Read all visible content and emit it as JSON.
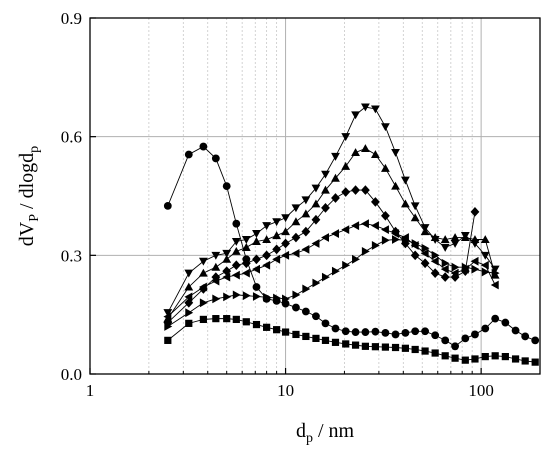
{
  "chart_data": {
    "type": "line",
    "xscale": "log",
    "xlim": [
      1,
      200
    ],
    "ylim": [
      0,
      0.9
    ],
    "xticks": [
      {
        "value": 1,
        "label": "1"
      },
      {
        "value": 10,
        "label": "10"
      },
      {
        "value": 100,
        "label": "100"
      }
    ],
    "yticks": [
      {
        "value": 0,
        "label": "0.0"
      },
      {
        "value": 0.3,
        "label": "0.3"
      },
      {
        "value": 0.6,
        "label": "0.6"
      },
      {
        "value": 0.9,
        "label": "0.9"
      }
    ],
    "xlabel": {
      "main": "d",
      "sub": "p",
      "rest": " / nm"
    },
    "ylabel": {
      "a": "dV",
      "a_sub": "P",
      "b": " / dlogd",
      "b_sub": "p"
    },
    "major_grid": {
      "x": [
        10,
        100
      ],
      "y": [
        0.3,
        0.6
      ]
    },
    "minor_grid_x": [
      2,
      3,
      4,
      5,
      6,
      7,
      8,
      9,
      20,
      30,
      40,
      50,
      60,
      70,
      80,
      90
    ],
    "colors": {
      "line": "#000000",
      "grid_major": "#b0b0b0",
      "grid_minor": "#c8c8c8"
    },
    "series": [
      {
        "marker": "circle",
        "points": [
          [
            2.5,
            0.425
          ],
          [
            3.2,
            0.555
          ],
          [
            3.8,
            0.575
          ],
          [
            4.4,
            0.545
          ],
          [
            5.0,
            0.475
          ],
          [
            5.6,
            0.38
          ],
          [
            6.3,
            0.29
          ],
          [
            7.1,
            0.22
          ],
          [
            8.0,
            0.19
          ],
          [
            9.0,
            0.185
          ],
          [
            10.0,
            0.178
          ],
          [
            11.3,
            0.168
          ],
          [
            12.7,
            0.158
          ],
          [
            14.3,
            0.146
          ],
          [
            16.0,
            0.128
          ],
          [
            18.0,
            0.115
          ],
          [
            20.3,
            0.108
          ],
          [
            22.8,
            0.106
          ],
          [
            25.6,
            0.106
          ],
          [
            28.8,
            0.107
          ],
          [
            32.4,
            0.104
          ],
          [
            36.5,
            0.1
          ],
          [
            41.0,
            0.104
          ],
          [
            46.0,
            0.108
          ],
          [
            51.7,
            0.108
          ],
          [
            58.2,
            0.098
          ],
          [
            65.5,
            0.085
          ],
          [
            73.6,
            0.07
          ],
          [
            83.0,
            0.09
          ],
          [
            93.0,
            0.1
          ],
          [
            105.0,
            0.115
          ],
          [
            118.0,
            0.14
          ],
          [
            133.0,
            0.13
          ],
          [
            150.0,
            0.11
          ],
          [
            168.0,
            0.095
          ],
          [
            189.0,
            0.085
          ]
        ]
      },
      {
        "marker": "square",
        "points": [
          [
            2.5,
            0.085
          ],
          [
            3.2,
            0.128
          ],
          [
            3.8,
            0.138
          ],
          [
            4.4,
            0.14
          ],
          [
            5.0,
            0.14
          ],
          [
            5.6,
            0.138
          ],
          [
            6.3,
            0.132
          ],
          [
            7.1,
            0.125
          ],
          [
            8.0,
            0.118
          ],
          [
            9.0,
            0.112
          ],
          [
            10.0,
            0.106
          ],
          [
            11.3,
            0.1
          ],
          [
            12.7,
            0.095
          ],
          [
            14.3,
            0.09
          ],
          [
            16.0,
            0.085
          ],
          [
            18.0,
            0.08
          ],
          [
            20.3,
            0.076
          ],
          [
            22.8,
            0.073
          ],
          [
            25.6,
            0.07
          ],
          [
            28.8,
            0.069
          ],
          [
            32.4,
            0.068
          ],
          [
            36.5,
            0.067
          ],
          [
            41.0,
            0.065
          ],
          [
            46.0,
            0.062
          ],
          [
            51.7,
            0.058
          ],
          [
            58.2,
            0.053
          ],
          [
            65.5,
            0.046
          ],
          [
            73.6,
            0.04
          ],
          [
            83.0,
            0.035
          ],
          [
            93.0,
            0.038
          ],
          [
            105.0,
            0.044
          ],
          [
            118.0,
            0.046
          ],
          [
            133.0,
            0.044
          ],
          [
            150.0,
            0.038
          ],
          [
            168.0,
            0.033
          ],
          [
            189.0,
            0.03
          ]
        ]
      },
      {
        "marker": "triangle-down",
        "points": [
          [
            2.5,
            0.155
          ],
          [
            3.2,
            0.255
          ],
          [
            3.8,
            0.285
          ],
          [
            4.4,
            0.3
          ],
          [
            5.0,
            0.305
          ],
          [
            5.6,
            0.335
          ],
          [
            6.3,
            0.34
          ],
          [
            7.1,
            0.355
          ],
          [
            8.0,
            0.375
          ],
          [
            9.0,
            0.385
          ],
          [
            10.0,
            0.395
          ],
          [
            11.3,
            0.42
          ],
          [
            12.7,
            0.44
          ],
          [
            14.3,
            0.47
          ],
          [
            16.0,
            0.505
          ],
          [
            18.0,
            0.55
          ],
          [
            20.3,
            0.6
          ],
          [
            22.8,
            0.655
          ],
          [
            25.6,
            0.675
          ],
          [
            28.8,
            0.67
          ],
          [
            32.4,
            0.625
          ],
          [
            36.5,
            0.56
          ],
          [
            41.0,
            0.49
          ],
          [
            46.0,
            0.425
          ],
          [
            51.7,
            0.37
          ],
          [
            58.2,
            0.34
          ],
          [
            65.5,
            0.32
          ],
          [
            73.6,
            0.33
          ],
          [
            83.0,
            0.35
          ],
          [
            93.0,
            0.33
          ],
          [
            105.0,
            0.3
          ],
          [
            118.0,
            0.265
          ]
        ]
      },
      {
        "marker": "triangle-up",
        "points": [
          [
            2.5,
            0.14
          ],
          [
            3.2,
            0.22
          ],
          [
            3.8,
            0.255
          ],
          [
            4.4,
            0.27
          ],
          [
            5.0,
            0.29
          ],
          [
            5.6,
            0.31
          ],
          [
            6.3,
            0.32
          ],
          [
            7.1,
            0.335
          ],
          [
            8.0,
            0.34
          ],
          [
            9.0,
            0.35
          ],
          [
            10.0,
            0.36
          ],
          [
            11.3,
            0.385
          ],
          [
            12.7,
            0.405
          ],
          [
            14.3,
            0.43
          ],
          [
            16.0,
            0.465
          ],
          [
            18.0,
            0.495
          ],
          [
            20.3,
            0.525
          ],
          [
            22.8,
            0.56
          ],
          [
            25.6,
            0.57
          ],
          [
            28.8,
            0.555
          ],
          [
            32.4,
            0.52
          ],
          [
            36.5,
            0.475
          ],
          [
            41.0,
            0.43
          ],
          [
            46.0,
            0.395
          ],
          [
            51.7,
            0.36
          ],
          [
            58.2,
            0.345
          ],
          [
            65.5,
            0.34
          ],
          [
            73.6,
            0.345
          ],
          [
            83.0,
            0.345
          ],
          [
            93.0,
            0.34
          ],
          [
            105.0,
            0.34
          ],
          [
            118.0,
            0.25
          ]
        ]
      },
      {
        "marker": "diamond",
        "points": [
          [
            2.5,
            0.13
          ],
          [
            3.2,
            0.18
          ],
          [
            3.8,
            0.215
          ],
          [
            4.4,
            0.245
          ],
          [
            5.0,
            0.26
          ],
          [
            5.6,
            0.275
          ],
          [
            6.3,
            0.28
          ],
          [
            7.1,
            0.29
          ],
          [
            8.0,
            0.3
          ],
          [
            9.0,
            0.315
          ],
          [
            10.0,
            0.33
          ],
          [
            11.3,
            0.345
          ],
          [
            12.7,
            0.36
          ],
          [
            14.3,
            0.39
          ],
          [
            16.0,
            0.42
          ],
          [
            18.0,
            0.445
          ],
          [
            20.3,
            0.46
          ],
          [
            22.8,
            0.465
          ],
          [
            25.6,
            0.465
          ],
          [
            28.8,
            0.435
          ],
          [
            32.4,
            0.4
          ],
          [
            36.5,
            0.36
          ],
          [
            41.0,
            0.33
          ],
          [
            46.0,
            0.3
          ],
          [
            51.7,
            0.28
          ],
          [
            58.2,
            0.255
          ],
          [
            65.5,
            0.245
          ],
          [
            73.6,
            0.245
          ],
          [
            83.0,
            0.26
          ],
          [
            93.0,
            0.41
          ]
        ]
      },
      {
        "marker": "triangle-left",
        "points": [
          [
            2.5,
            0.145
          ],
          [
            3.2,
            0.195
          ],
          [
            3.8,
            0.22
          ],
          [
            4.4,
            0.235
          ],
          [
            5.0,
            0.245
          ],
          [
            5.6,
            0.25
          ],
          [
            6.3,
            0.255
          ],
          [
            7.1,
            0.265
          ],
          [
            8.0,
            0.275
          ],
          [
            9.0,
            0.29
          ],
          [
            10.0,
            0.3
          ],
          [
            11.3,
            0.305
          ],
          [
            12.7,
            0.315
          ],
          [
            14.3,
            0.33
          ],
          [
            16.0,
            0.345
          ],
          [
            18.0,
            0.355
          ],
          [
            20.3,
            0.365
          ],
          [
            22.8,
            0.375
          ],
          [
            25.6,
            0.38
          ],
          [
            28.8,
            0.375
          ],
          [
            32.4,
            0.365
          ],
          [
            36.5,
            0.355
          ],
          [
            41.0,
            0.345
          ],
          [
            46.0,
            0.325
          ],
          [
            51.7,
            0.305
          ],
          [
            58.2,
            0.285
          ],
          [
            65.5,
            0.265
          ],
          [
            73.6,
            0.255
          ],
          [
            83.0,
            0.265
          ],
          [
            93.0,
            0.285
          ],
          [
            105.0,
            0.275
          ],
          [
            118.0,
            0.225
          ]
        ]
      },
      {
        "marker": "triangle-right",
        "points": [
          [
            2.5,
            0.12
          ],
          [
            3.2,
            0.155
          ],
          [
            3.8,
            0.18
          ],
          [
            4.4,
            0.19
          ],
          [
            5.0,
            0.195
          ],
          [
            5.6,
            0.2
          ],
          [
            6.3,
            0.198
          ],
          [
            7.1,
            0.196
          ],
          [
            8.0,
            0.194
          ],
          [
            9.0,
            0.192
          ],
          [
            10.0,
            0.19
          ],
          [
            11.3,
            0.2
          ],
          [
            12.7,
            0.215
          ],
          [
            14.3,
            0.23
          ],
          [
            16.0,
            0.245
          ],
          [
            18.0,
            0.26
          ],
          [
            20.3,
            0.275
          ],
          [
            22.8,
            0.29
          ],
          [
            25.6,
            0.31
          ],
          [
            28.8,
            0.325
          ],
          [
            32.4,
            0.338
          ],
          [
            36.5,
            0.34
          ],
          [
            41.0,
            0.338
          ],
          [
            46.0,
            0.33
          ],
          [
            51.7,
            0.318
          ],
          [
            58.2,
            0.3
          ],
          [
            65.5,
            0.28
          ],
          [
            73.6,
            0.27
          ],
          [
            83.0,
            0.27
          ],
          [
            93.0,
            0.265
          ],
          [
            105.0,
            0.258
          ],
          [
            118.0,
            0.255
          ]
        ]
      }
    ]
  }
}
